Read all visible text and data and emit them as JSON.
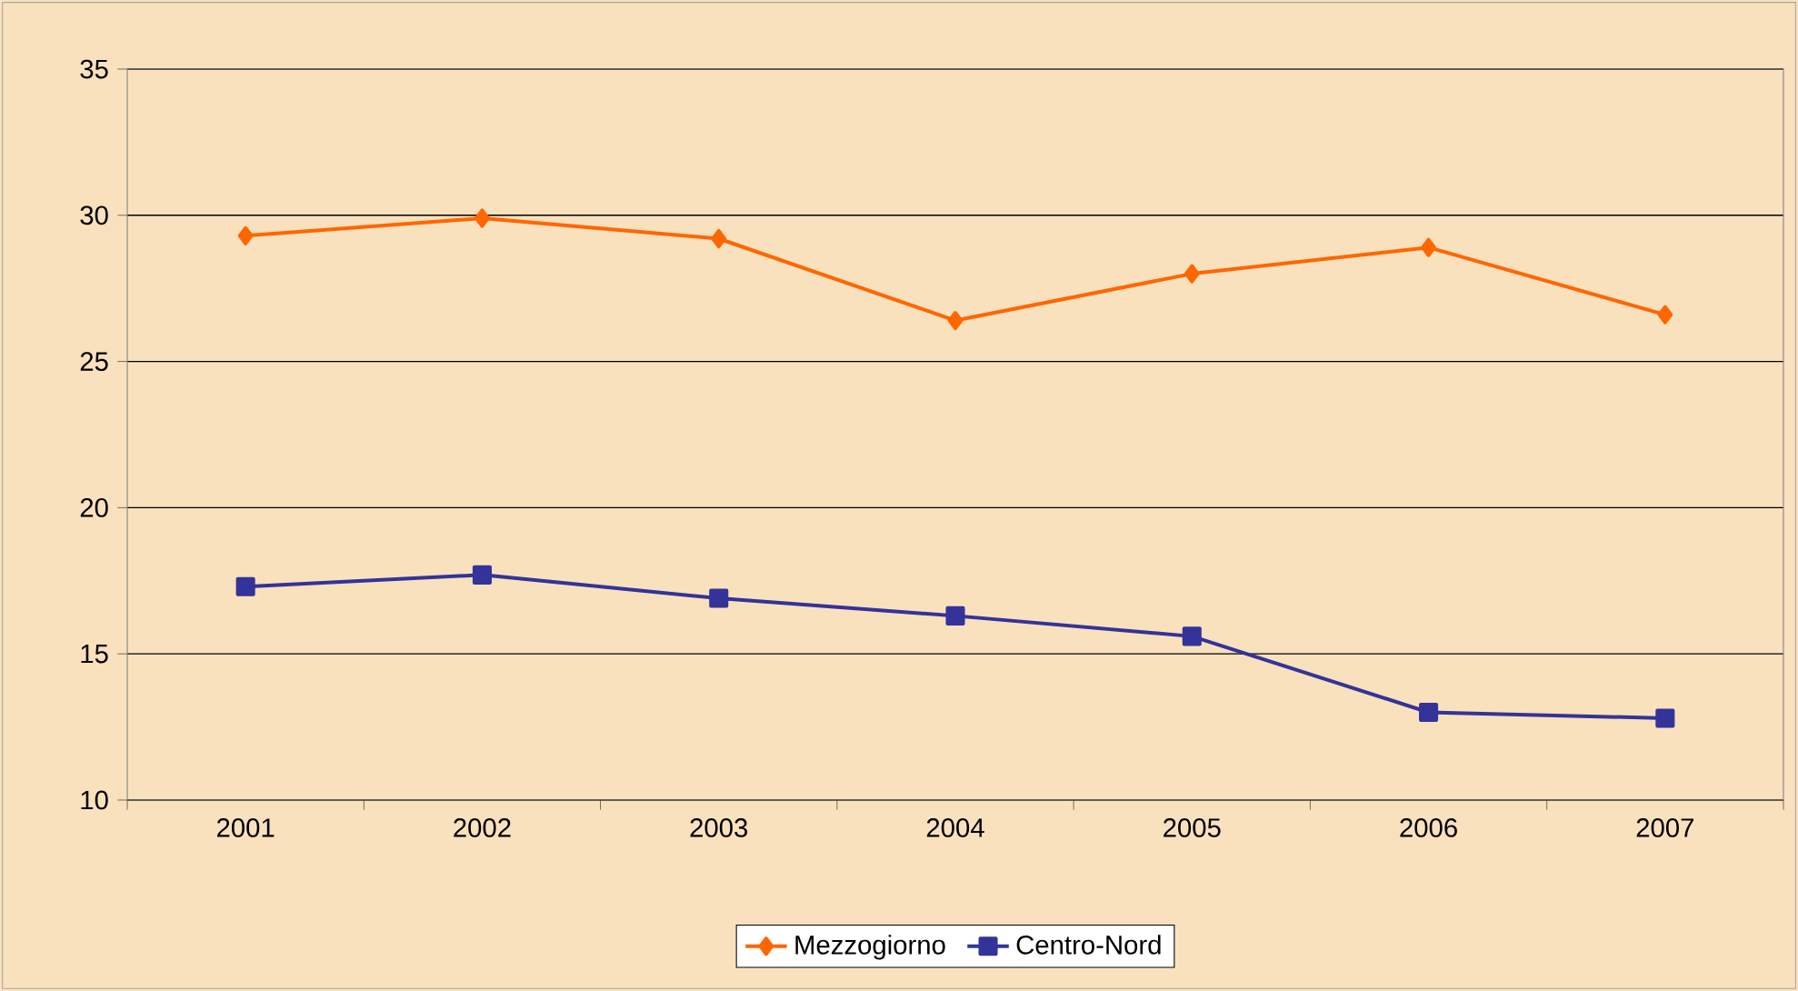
{
  "chart_data": {
    "type": "line",
    "categories": [
      "2001",
      "2002",
      "2003",
      "2004",
      "2005",
      "2006",
      "2007"
    ],
    "series": [
      {
        "name": "Mezzogiorno",
        "color": "#ff6600",
        "marker": "diamond",
        "values": [
          29.3,
          29.9,
          29.2,
          26.4,
          28.0,
          28.9,
          26.6
        ]
      },
      {
        "name": "Centro-Nord",
        "color": "#333399",
        "marker": "square",
        "values": [
          17.3,
          17.7,
          16.9,
          16.3,
          15.6,
          13.0,
          12.8
        ]
      }
    ],
    "ylim": [
      10,
      35
    ],
    "yticks": [
      10,
      15,
      20,
      25,
      30,
      35
    ],
    "grid": "y",
    "legend": "bottom",
    "line_style": "solid"
  }
}
